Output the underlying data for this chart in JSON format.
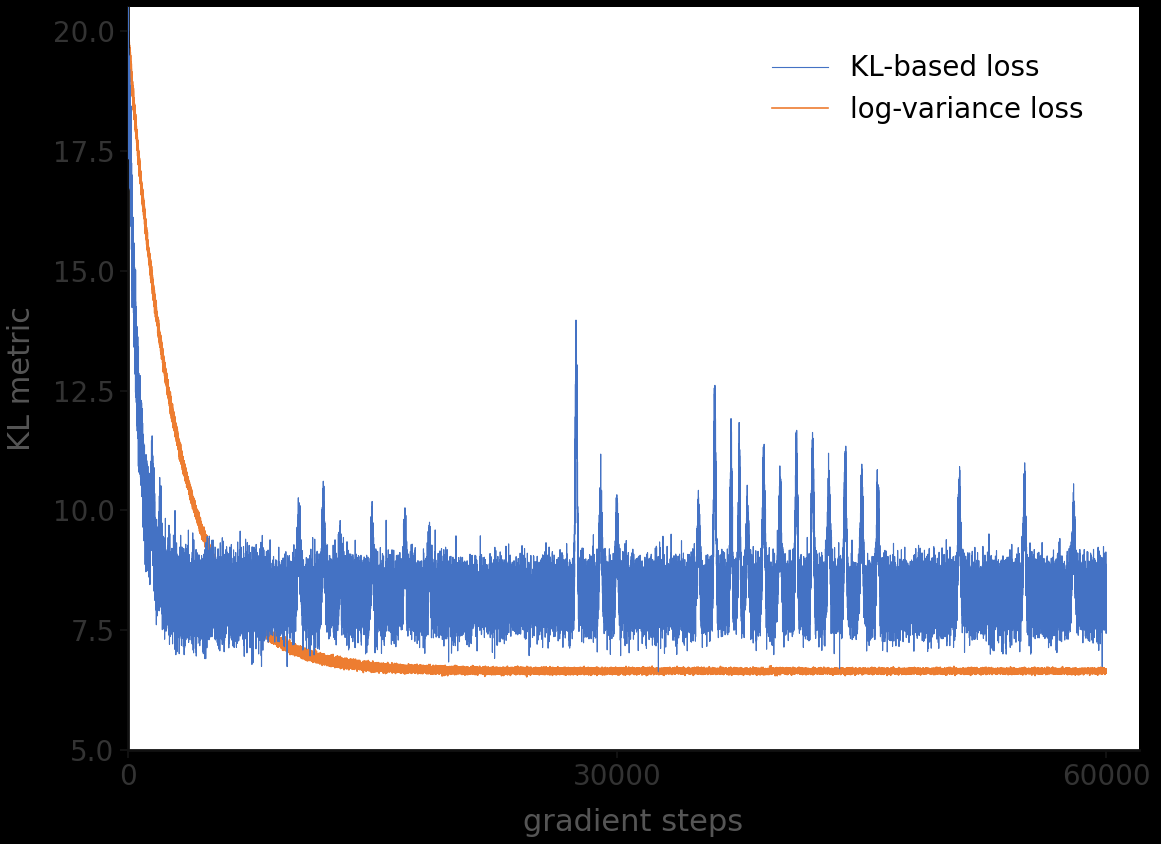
{
  "title": "",
  "xlabel": "gradient steps",
  "ylabel": "KL metric",
  "xlim": [
    0,
    62000
  ],
  "ylim": [
    5.0,
    20.5
  ],
  "yticks": [
    5.0,
    7.5,
    10.0,
    12.5,
    15.0,
    17.5,
    20.0
  ],
  "xticks": [
    0,
    30000,
    60000
  ],
  "xtick_labels": [
    "0",
    "30000",
    "60000"
  ],
  "kl_color": "#4472C4",
  "lv_color": "#ED7D31",
  "legend_labels": [
    "KL-based loss",
    "log-variance loss"
  ],
  "background_color": "#ffffff",
  "outer_background": "#000000",
  "figsize": [
    11.61,
    8.44
  ],
  "dpi": 100,
  "seed": 42
}
